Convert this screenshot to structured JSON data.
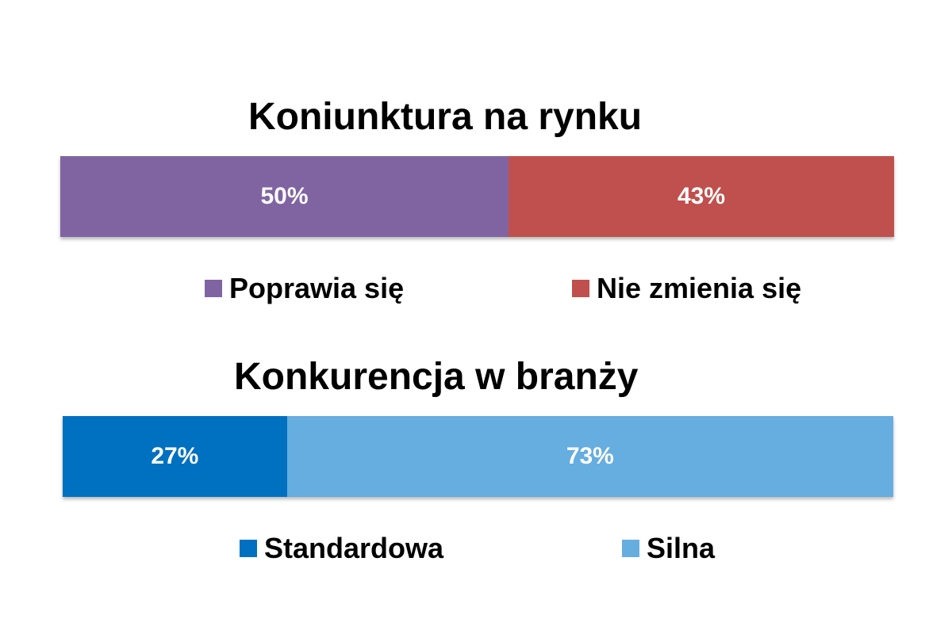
{
  "chart_data": [
    {
      "type": "bar",
      "orientation": "horizontal-stacked",
      "title": "Koniunktura na rynku",
      "series": [
        {
          "name": "Poprawia się",
          "value": 50,
          "label": "50%",
          "color": "#8064a2"
        },
        {
          "name": "Nie zmienia się",
          "value": 43,
          "label": "43%",
          "color": "#c0504d"
        }
      ],
      "legend_position": "bottom"
    },
    {
      "type": "bar",
      "orientation": "horizontal-stacked",
      "title": "Konkurencja w branży",
      "series": [
        {
          "name": "Standardowa",
          "value": 27,
          "label": "27%",
          "color": "#0070c0"
        },
        {
          "name": "Silna",
          "value": 73,
          "label": "73%",
          "color": "#66ade0"
        }
      ],
      "legend_position": "bottom"
    }
  ]
}
